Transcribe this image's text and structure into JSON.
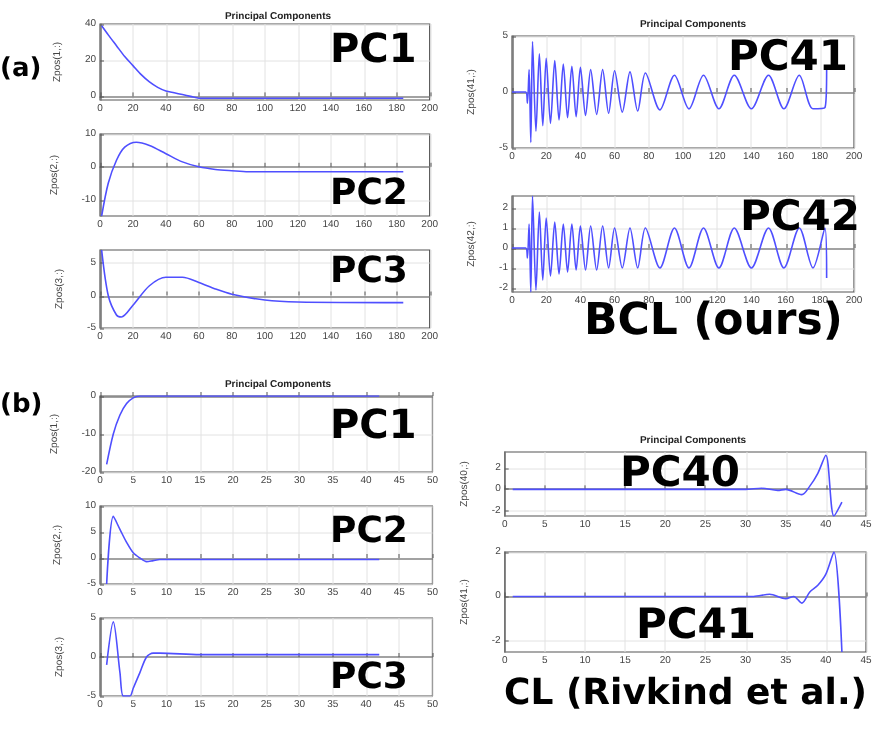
{
  "chart_data": [
    {
      "type": "line",
      "title": "Principal Components",
      "ylabel": "Zpos(1,:)",
      "color": "#4f4fff",
      "grid": true,
      "xlim": [
        0,
        200
      ],
      "xticks": [
        0,
        20,
        40,
        60,
        80,
        100,
        120,
        140,
        160,
        180,
        200
      ],
      "ylim": [
        -2,
        40
      ],
      "yticks": [
        0,
        20,
        40
      ],
      "annotations": [
        "PC1",
        "(a)"
      ],
      "x": [
        1,
        5,
        10,
        15,
        20,
        25,
        30,
        35,
        40,
        45,
        50,
        55,
        60,
        70,
        80,
        100,
        140,
        184
      ],
      "values": [
        39,
        34,
        28,
        22,
        17,
        12,
        8,
        5,
        3,
        2,
        1,
        0,
        -1,
        -1,
        -1,
        -1,
        -1,
        -1
      ]
    },
    {
      "type": "line",
      "ylabel": "Zpos(2,:)",
      "color": "#4f4fff",
      "grid": true,
      "xlim": [
        0,
        200
      ],
      "xticks": [
        0,
        20,
        40,
        60,
        80,
        100,
        120,
        140,
        160,
        180,
        200
      ],
      "ylim": [
        -15,
        10
      ],
      "yticks": [
        -10,
        0,
        10
      ],
      "annotations": [
        "PC2"
      ],
      "x": [
        1,
        5,
        10,
        15,
        22,
        30,
        40,
        50,
        60,
        70,
        80,
        90,
        120,
        184
      ],
      "values": [
        -15,
        -5,
        2,
        6,
        7.5,
        6.5,
        4,
        1.5,
        0,
        -0.8,
        -1.2,
        -1.5,
        -1.5,
        -1.5
      ]
    },
    {
      "type": "line",
      "ylabel": "Zpos(3,:)",
      "color": "#4f4fff",
      "grid": true,
      "xlim": [
        0,
        200
      ],
      "xticks": [
        0,
        20,
        40,
        60,
        80,
        100,
        120,
        140,
        160,
        180,
        200
      ],
      "ylim": [
        -5,
        7
      ],
      "yticks": [
        -5,
        0,
        5
      ],
      "annotations": [
        "PC3"
      ],
      "x": [
        1,
        5,
        10,
        13,
        20,
        30,
        40,
        50,
        60,
        70,
        80,
        100,
        120,
        184
      ],
      "values": [
        7,
        0,
        -3,
        -3.3,
        -1.5,
        1.5,
        2.8,
        2.8,
        2,
        1,
        0.2,
        -0.7,
        -1,
        -1.1
      ]
    },
    {
      "type": "line",
      "title": "Principal Components",
      "ylabel": "Zpos(41,:)",
      "color": "#4f4fff",
      "grid": true,
      "xlim": [
        0,
        200
      ],
      "xticks": [
        0,
        20,
        40,
        60,
        80,
        100,
        120,
        140,
        160,
        180,
        200
      ],
      "ylim": [
        -5,
        5
      ],
      "yticks": [
        -5,
        0,
        5
      ],
      "annotations": [
        "PC41"
      ],
      "x": [
        0,
        8,
        9,
        10,
        11,
        12,
        14,
        16,
        18,
        20,
        22.5,
        25,
        27.5,
        30,
        32.5,
        35,
        37.5,
        40,
        43,
        46,
        49.5,
        53,
        56.5,
        60,
        64.5,
        69,
        73.5,
        78,
        86.5,
        95,
        103.5,
        112,
        121,
        130,
        140,
        150,
        159,
        168,
        176,
        183,
        184
      ],
      "values": [
        0,
        0,
        -1,
        2,
        -4.5,
        4.5,
        -3.5,
        3.4,
        -3,
        3,
        -2.8,
        2.8,
        -2.5,
        2.5,
        -2.3,
        2.3,
        -2.2,
        2.2,
        -2.1,
        2,
        -2,
        2,
        -1.9,
        1.9,
        -1.8,
        1.8,
        -1.7,
        1.7,
        -1.6,
        1.5,
        -1.5,
        1.5,
        -1.5,
        1.5,
        -1.5,
        1.5,
        -1.5,
        1.5,
        -1.5,
        -1.4,
        2
      ]
    },
    {
      "type": "line",
      "ylabel": "Zpos(42,:)",
      "color": "#4f4fff",
      "grid": true,
      "xlim": [
        0,
        200
      ],
      "xticks": [
        0,
        20,
        40,
        60,
        80,
        100,
        120,
        140,
        160,
        180,
        200
      ],
      "ylim": [
        -2.2,
        2.6
      ],
      "yticks": [
        -2,
        -1,
        0,
        1,
        2
      ],
      "annotations": [
        "PC42",
        "BCL (ours)"
      ],
      "x": [
        0,
        8,
        9,
        10,
        11,
        12,
        14,
        16,
        18,
        20,
        22.5,
        25,
        27.5,
        30,
        32.5,
        35,
        37.5,
        40,
        43,
        46,
        49.5,
        53,
        56.5,
        60,
        64.5,
        69,
        73.5,
        78,
        86.5,
        95,
        103.5,
        112,
        121,
        130,
        140,
        150,
        159,
        168,
        176,
        183,
        184
      ],
      "values": [
        0,
        0,
        -0.5,
        1.2,
        -2.2,
        2.6,
        -2.1,
        1.8,
        -1.6,
        1.5,
        -1.4,
        1.3,
        -1.3,
        1.2,
        -1.2,
        1.2,
        -1.1,
        1.1,
        -1.1,
        1.1,
        -1.1,
        1.1,
        -1,
        1,
        -1,
        1,
        -1,
        1,
        -1,
        1,
        -1,
        1,
        -1,
        1,
        -1,
        1,
        -1,
        1,
        -1,
        1,
        -1.5
      ]
    },
    {
      "type": "line",
      "title": "Principal Components",
      "ylabel": "Zpos(1,:)",
      "color": "#4f4fff",
      "grid": true,
      "xlim": [
        0,
        50
      ],
      "xticks": [
        0,
        5,
        10,
        15,
        20,
        25,
        30,
        35,
        40,
        45,
        50
      ],
      "ylim": [
        -20,
        0
      ],
      "yticks": [
        -20,
        -10,
        0
      ],
      "annotations": [
        "PC1",
        "(b)"
      ],
      "x": [
        1,
        2,
        3,
        4,
        5,
        6,
        10,
        20,
        42
      ],
      "values": [
        -18,
        -10,
        -5,
        -2,
        -0.5,
        0,
        0,
        0,
        0
      ]
    },
    {
      "type": "line",
      "ylabel": "Zpos(2,:)",
      "color": "#4f4fff",
      "grid": true,
      "xlim": [
        0,
        50
      ],
      "xticks": [
        0,
        5,
        10,
        15,
        20,
        25,
        30,
        35,
        40,
        45,
        50
      ],
      "ylim": [
        -5,
        10
      ],
      "yticks": [
        -5,
        0,
        5,
        10
      ],
      "annotations": [
        "PC2"
      ],
      "x": [
        1,
        2,
        3,
        4,
        5,
        6,
        7,
        8,
        9,
        20,
        42
      ],
      "values": [
        -5,
        8,
        5.5,
        3,
        1,
        0,
        -0.7,
        -0.5,
        -0.3,
        -0.3,
        -0.3
      ]
    },
    {
      "type": "line",
      "ylabel": "Zpos(3,:)",
      "color": "#4f4fff",
      "grid": true,
      "xlim": [
        0,
        50
      ],
      "xticks": [
        0,
        5,
        10,
        15,
        20,
        25,
        30,
        35,
        40,
        45,
        50
      ],
      "ylim": [
        -5,
        5
      ],
      "yticks": [
        -5,
        0,
        5
      ],
      "annotations": [
        "PC3"
      ],
      "x": [
        1,
        2,
        3,
        3.5,
        4.5,
        5,
        6,
        7,
        8,
        9,
        15,
        42
      ],
      "values": [
        -1,
        4.5,
        -2,
        -5,
        -5,
        -4,
        -2,
        0,
        0.5,
        0.5,
        0.3,
        0.3
      ]
    },
    {
      "type": "line",
      "title": "Principal Components",
      "ylabel": "Zpos(40,:)",
      "color": "#4f4fff",
      "grid": true,
      "xlim": [
        0,
        45
      ],
      "xticks": [
        0,
        5,
        10,
        15,
        20,
        25,
        30,
        35,
        40,
        45
      ],
      "ylim": [
        -2.5,
        3.5
      ],
      "yticks": [
        -2,
        0,
        2
      ],
      "annotations": [
        "PC40"
      ],
      "x": [
        1,
        30,
        32,
        34,
        35,
        37,
        38,
        39,
        40,
        41,
        42
      ],
      "values": [
        0,
        0,
        0.1,
        -0.1,
        0,
        -0.5,
        0.3,
        1.5,
        3.2,
        -2.5,
        -1.2
      ]
    },
    {
      "type": "line",
      "ylabel": "Zpos(41,:)",
      "color": "#4f4fff",
      "grid": true,
      "xlim": [
        0,
        45
      ],
      "xticks": [
        0,
        5,
        10,
        15,
        20,
        25,
        30,
        35,
        40,
        45
      ],
      "ylim": [
        -2.5,
        2
      ],
      "yticks": [
        -2,
        0,
        2
      ],
      "annotations": [
        "PC41",
        "CL (Rivkind et al.)"
      ],
      "x": [
        1,
        31,
        33,
        35,
        36,
        37,
        38,
        39,
        40,
        41,
        42
      ],
      "values": [
        0,
        0,
        0.1,
        -0.1,
        0,
        -0.3,
        0.2,
        0.5,
        1,
        2,
        -2.5
      ]
    }
  ]
}
